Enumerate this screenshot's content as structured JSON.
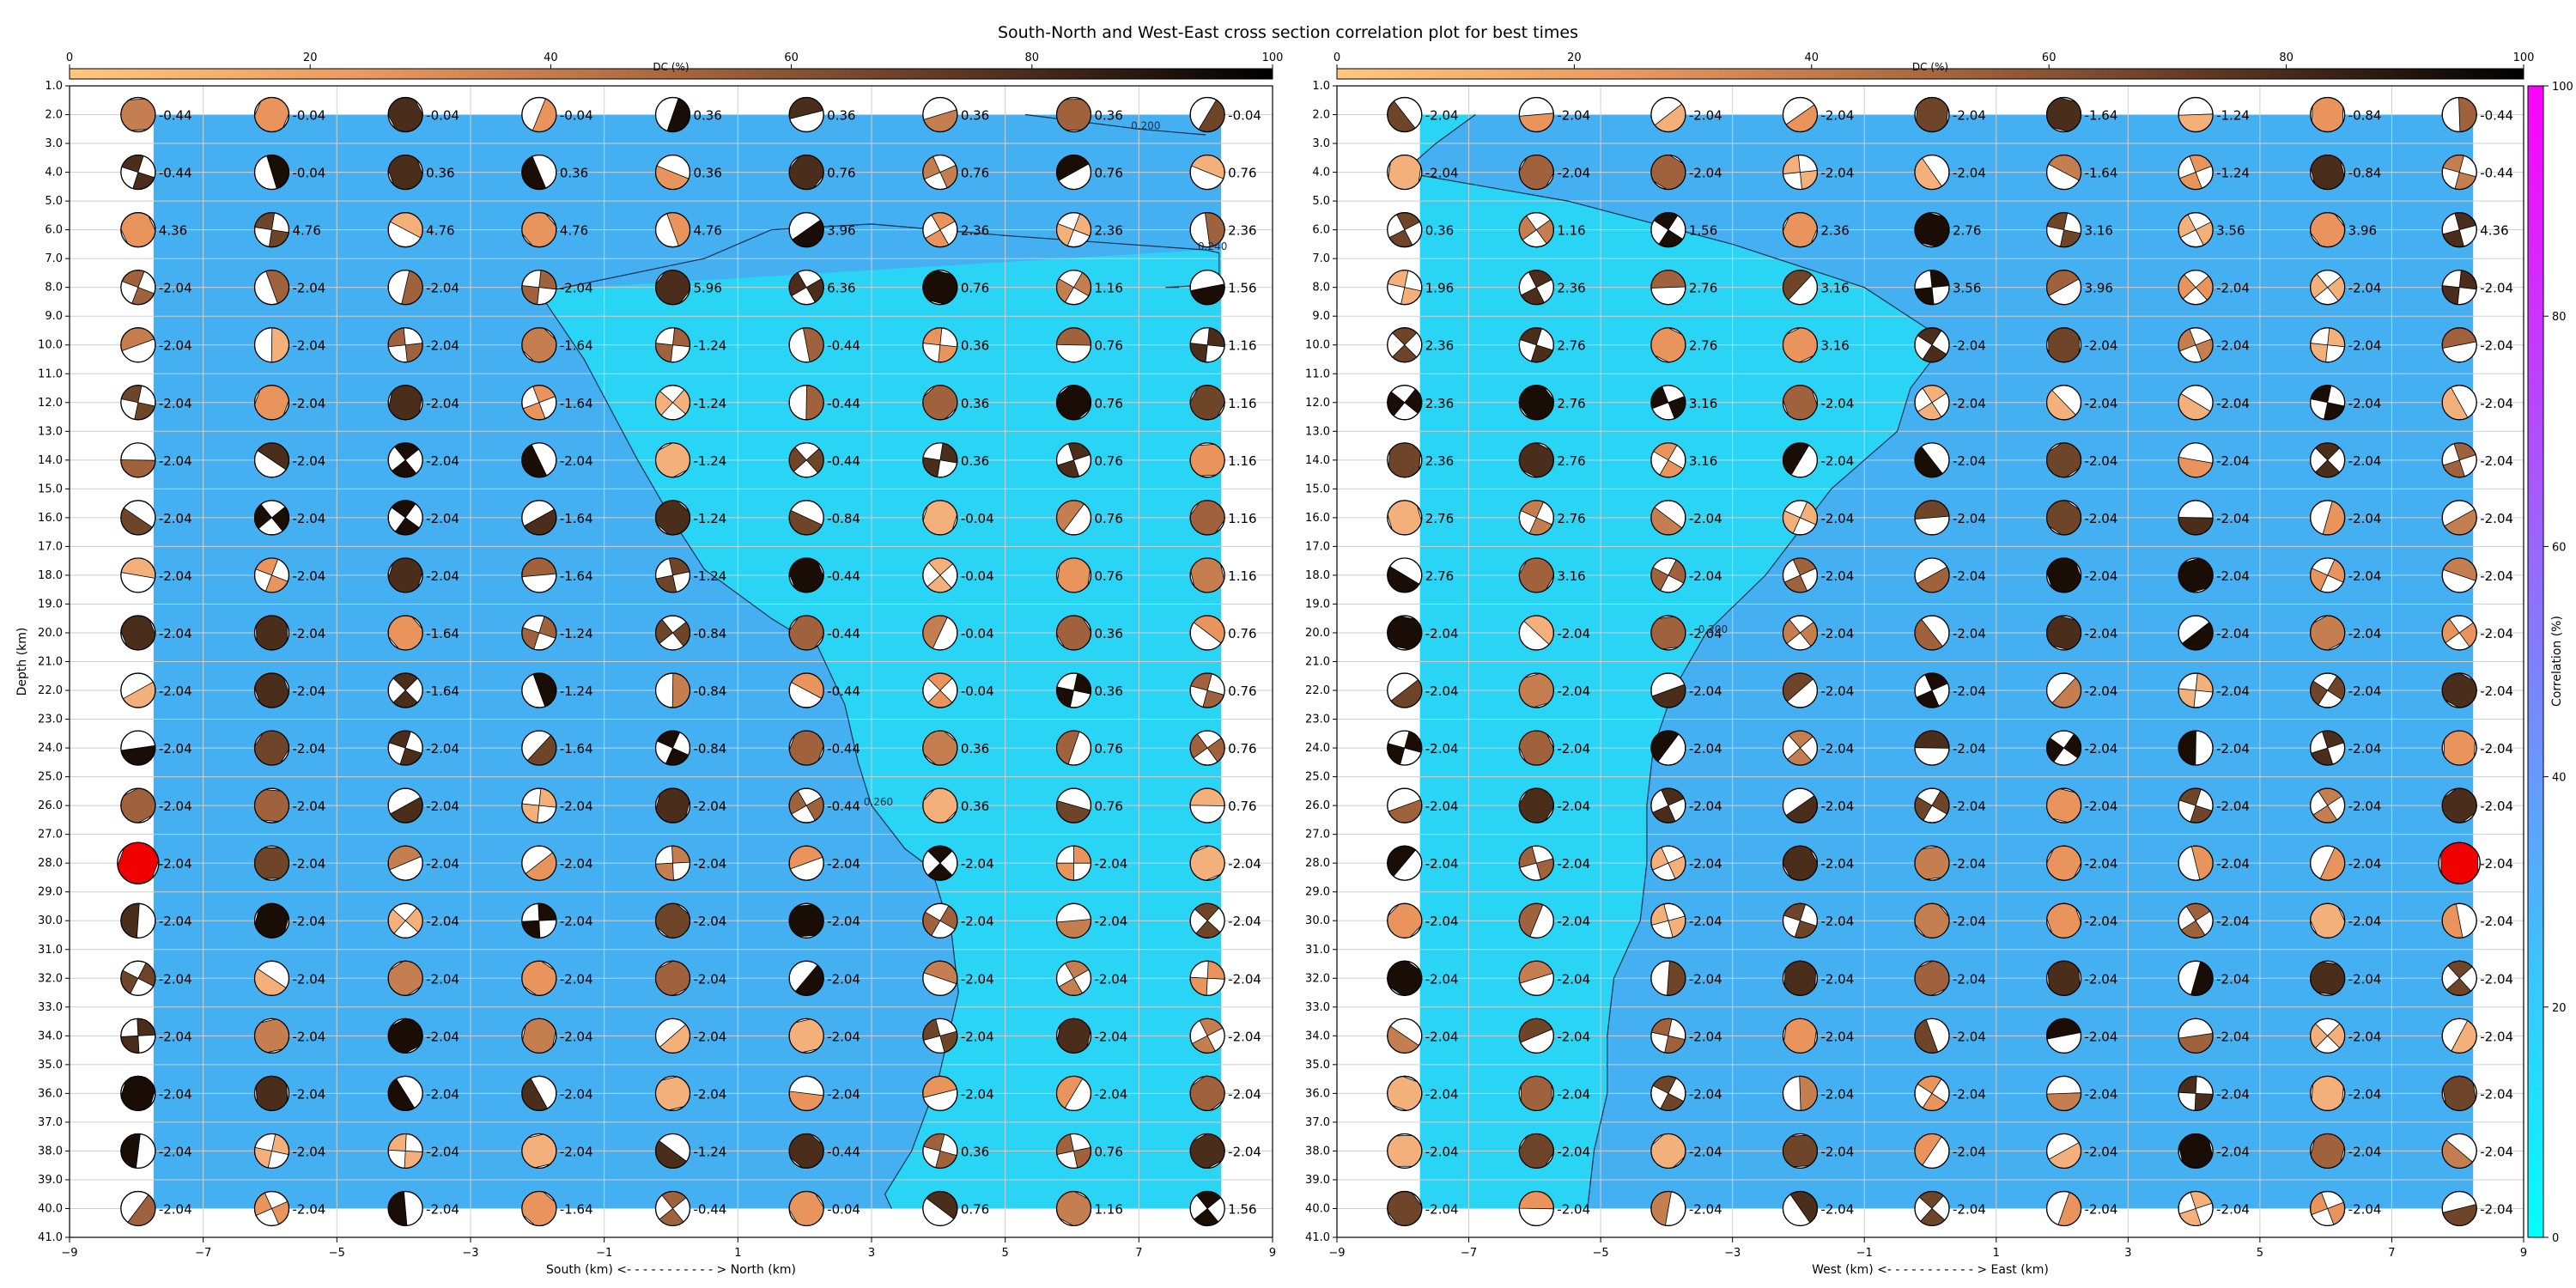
{
  "figure_title": "South-North and West-East cross section correlation plot for best times",
  "colors": {
    "background_low": "#2ad4f5",
    "background_high": "#44b0f2",
    "grid": "#cfcfcf",
    "best_solution": "#f00000",
    "correlation_min": "#00ffff",
    "correlation_max": "#ff00ff"
  },
  "dc_colorbar": {
    "label": "DC (%)",
    "ticks": [
      0,
      20,
      40,
      60,
      80,
      100
    ],
    "colormap": "copper_r"
  },
  "correlation_colorbar": {
    "label": "Correlation (%)",
    "ticks": [
      0,
      20,
      40,
      60,
      80,
      100
    ],
    "colormap": "cool"
  },
  "chart_data": [
    {
      "type": "scatter",
      "panel": "south-north",
      "xlabel": "South (km) <- - - - - - - - - - - > North (km)",
      "ylabel": "Depth (km)",
      "x_ticks": [
        -9,
        -7,
        -5,
        -3,
        -1,
        1,
        3,
        5,
        7,
        9
      ],
      "y_ticks": [
        1,
        2,
        3,
        4,
        5,
        6,
        7,
        8,
        9,
        10,
        11,
        12,
        13,
        14,
        15,
        16,
        17,
        18,
        19,
        20,
        21,
        22,
        23,
        24,
        25,
        26,
        27,
        28,
        29,
        30,
        31,
        32,
        33,
        34,
        35,
        36,
        37,
        38,
        39,
        40,
        41
      ],
      "xlim": [
        -9,
        9
      ],
      "ylim": [
        41,
        1
      ],
      "grid": true,
      "columns_x": [
        -8,
        -6,
        -4,
        -2,
        0,
        2,
        4,
        6,
        8
      ],
      "rows_depth": [
        2,
        4,
        6,
        8,
        10,
        12,
        14,
        16,
        18,
        20,
        22,
        24,
        26,
        28,
        30,
        32,
        34,
        36,
        38,
        40
      ],
      "time_labels": [
        [
          "-0.44",
          "-0.04",
          "-0.04",
          "-0.04",
          "0.36",
          "0.36",
          "0.36",
          "0.36",
          "-0.04"
        ],
        [
          "-0.44",
          "-0.04",
          "0.36",
          "0.36",
          "0.36",
          "0.76",
          "0.76",
          "0.76",
          "0.76"
        ],
        [
          "4.36",
          "4.76",
          "4.76",
          "4.76",
          "4.76",
          "3.96",
          "2.36",
          "2.36",
          "2.36"
        ],
        [
          "-2.04",
          "-2.04",
          "-2.04",
          "-2.04",
          "5.96",
          "6.36",
          "0.76",
          "1.16",
          "1.56"
        ],
        [
          "-2.04",
          "-2.04",
          "-2.04",
          "-1.64",
          "-1.24",
          "-0.44",
          "0.36",
          "0.76",
          "1.16"
        ],
        [
          "-2.04",
          "-2.04",
          "-2.04",
          "-1.64",
          "-1.24",
          "-0.44",
          "0.36",
          "0.76",
          "1.16"
        ],
        [
          "-2.04",
          "-2.04",
          "-2.04",
          "-2.04",
          "-1.24",
          "-0.44",
          "0.36",
          "0.76",
          "1.16"
        ],
        [
          "-2.04",
          "-2.04",
          "-2.04",
          "-1.64",
          "-1.24",
          "-0.84",
          "-0.04",
          "0.76",
          "1.16"
        ],
        [
          "-2.04",
          "-2.04",
          "-2.04",
          "-1.64",
          "-1.24",
          "-0.44",
          "-0.04",
          "0.76",
          "1.16"
        ],
        [
          "-2.04",
          "-2.04",
          "-1.64",
          "-1.24",
          "-0.84",
          "-0.44",
          "-0.04",
          "0.36",
          "0.76"
        ],
        [
          "-2.04",
          "-2.04",
          "-1.64",
          "-1.24",
          "-0.84",
          "-0.44",
          "-0.04",
          "0.36",
          "0.76"
        ],
        [
          "-2.04",
          "-2.04",
          "-2.04",
          "-1.64",
          "-0.84",
          "-0.44",
          "0.36",
          "0.76",
          "0.76"
        ],
        [
          "-2.04",
          "-2.04",
          "-2.04",
          "-2.04",
          "-2.04",
          "-0.44",
          "0.36",
          "0.76",
          "0.76"
        ],
        [
          "-2.04",
          "-2.04",
          "-2.04",
          "-2.04",
          "-2.04",
          "-2.04",
          "-2.04",
          "-2.04",
          "-2.04"
        ],
        [
          "-2.04",
          "-2.04",
          "-2.04",
          "-2.04",
          "-2.04",
          "-2.04",
          "-2.04",
          "-2.04",
          "-2.04"
        ],
        [
          "-2.04",
          "-2.04",
          "-2.04",
          "-2.04",
          "-2.04",
          "-2.04",
          "-2.04",
          "-2.04",
          "-2.04"
        ],
        [
          "-2.04",
          "-2.04",
          "-2.04",
          "-2.04",
          "-2.04",
          "-2.04",
          "-2.04",
          "-2.04",
          "-2.04"
        ],
        [
          "-2.04",
          "-2.04",
          "-2.04",
          "-2.04",
          "-2.04",
          "-2.04",
          "-2.04",
          "-2.04",
          "-2.04"
        ],
        [
          "-2.04",
          "-2.04",
          "-2.04",
          "-2.04",
          "-1.24",
          "-0.44",
          "0.36",
          "0.76",
          "-2.04"
        ],
        [
          "-2.04",
          "-2.04",
          "-2.04",
          "-1.64",
          "-0.44",
          "-0.04",
          "0.76",
          "1.16",
          "1.56"
        ]
      ],
      "best_solution": {
        "x": -8,
        "depth": 28
      },
      "contours": [
        {
          "label": "0.200",
          "points": [
            [
              5.3,
              2.0
            ],
            [
              7.0,
              2.5
            ],
            [
              8.0,
              2.7
            ]
          ]
        },
        {
          "label": "0.240",
          "points": [
            [
              -2,
              8.2
            ],
            [
              0.5,
              7.0
            ],
            [
              1.5,
              6.0
            ],
            [
              3,
              5.8
            ],
            [
              5,
              6.2
            ],
            [
              8,
              6.7
            ],
            [
              8.2,
              6.8
            ],
            [
              8.2,
              7.9
            ],
            [
              7.4,
              8.0
            ],
            [
              7.6,
              8.0
            ]
          ]
        },
        {
          "label": "0.260",
          "points": [
            [
              -2,
              8.1
            ],
            [
              -1.3,
              10.5
            ],
            [
              -0.5,
              14
            ],
            [
              0,
              16
            ],
            [
              0.5,
              17.8
            ],
            [
              1.5,
              19.5
            ],
            [
              2.2,
              20.5
            ],
            [
              2.6,
              22.5
            ],
            [
              2.8,
              24.5
            ],
            [
              3.0,
              26
            ],
            [
              3.5,
              27.5
            ],
            [
              3.9,
              28.2
            ],
            [
              4.2,
              30.5
            ],
            [
              4.3,
              32.5
            ],
            [
              4.0,
              35.5
            ],
            [
              3.6,
              38
            ],
            [
              3.2,
              39.5
            ],
            [
              3.3,
              40
            ]
          ]
        }
      ]
    },
    {
      "type": "scatter",
      "panel": "west-east",
      "xlabel": "West (km) <- - - - - - - - - - - > East (km)",
      "ylabel": "Depth (km)",
      "x_ticks": [
        -9,
        -7,
        -5,
        -3,
        -1,
        1,
        3,
        5,
        7,
        9
      ],
      "y_ticks": [
        1,
        2,
        3,
        4,
        5,
        6,
        7,
        8,
        9,
        10,
        11,
        12,
        13,
        14,
        15,
        16,
        17,
        18,
        19,
        20,
        21,
        22,
        23,
        24,
        25,
        26,
        27,
        28,
        29,
        30,
        31,
        32,
        33,
        34,
        35,
        36,
        37,
        38,
        39,
        40,
        41
      ],
      "xlim": [
        -9,
        9
      ],
      "ylim": [
        41,
        1
      ],
      "grid": true,
      "columns_x": [
        -8,
        -6,
        -4,
        -2,
        0,
        2,
        4,
        6,
        8
      ],
      "rows_depth": [
        2,
        4,
        6,
        8,
        10,
        12,
        14,
        16,
        18,
        20,
        22,
        24,
        26,
        28,
        30,
        32,
        34,
        36,
        38,
        40
      ],
      "time_labels": [
        [
          "-2.04",
          "-2.04",
          "-2.04",
          "-2.04",
          "-2.04",
          "-1.64",
          "-1.24",
          "-0.84",
          "-0.44"
        ],
        [
          "-2.04",
          "-2.04",
          "-2.04",
          "-2.04",
          "-2.04",
          "-1.64",
          "-1.24",
          "-0.84",
          "-0.44"
        ],
        [
          "0.36",
          "1.16",
          "1.56",
          "2.36",
          "2.76",
          "3.16",
          "3.56",
          "3.96",
          "4.36"
        ],
        [
          "1.96",
          "2.36",
          "2.76",
          "3.16",
          "3.56",
          "3.96",
          "-2.04",
          "-2.04",
          "-2.04"
        ],
        [
          "2.36",
          "2.76",
          "2.76",
          "3.16",
          "-2.04",
          "-2.04",
          "-2.04",
          "-2.04",
          "-2.04"
        ],
        [
          "2.36",
          "2.76",
          "3.16",
          "-2.04",
          "-2.04",
          "-2.04",
          "-2.04",
          "-2.04",
          "-2.04"
        ],
        [
          "2.36",
          "2.76",
          "3.16",
          "-2.04",
          "-2.04",
          "-2.04",
          "-2.04",
          "-2.04",
          "-2.04"
        ],
        [
          "2.76",
          "2.76",
          "-2.04",
          "-2.04",
          "-2.04",
          "-2.04",
          "-2.04",
          "-2.04",
          "-2.04"
        ],
        [
          "2.76",
          "3.16",
          "-2.04",
          "-2.04",
          "-2.04",
          "-2.04",
          "-2.04",
          "-2.04",
          "-2.04"
        ],
        [
          "-2.04",
          "-2.04",
          "-2.04",
          "-2.04",
          "-2.04",
          "-2.04",
          "-2.04",
          "-2.04",
          "-2.04"
        ],
        [
          "-2.04",
          "-2.04",
          "-2.04",
          "-2.04",
          "-2.04",
          "-2.04",
          "-2.04",
          "-2.04",
          "-2.04"
        ],
        [
          "-2.04",
          "-2.04",
          "-2.04",
          "-2.04",
          "-2.04",
          "-2.04",
          "-2.04",
          "-2.04",
          "-2.04"
        ],
        [
          "-2.04",
          "-2.04",
          "-2.04",
          "-2.04",
          "-2.04",
          "-2.04",
          "-2.04",
          "-2.04",
          "-2.04"
        ],
        [
          "-2.04",
          "-2.04",
          "-2.04",
          "-2.04",
          "-2.04",
          "-2.04",
          "-2.04",
          "-2.04",
          "-2.04"
        ],
        [
          "-2.04",
          "-2.04",
          "-2.04",
          "-2.04",
          "-2.04",
          "-2.04",
          "-2.04",
          "-2.04",
          "-2.04"
        ],
        [
          "-2.04",
          "-2.04",
          "-2.04",
          "-2.04",
          "-2.04",
          "-2.04",
          "-2.04",
          "-2.04",
          "-2.04"
        ],
        [
          "-2.04",
          "-2.04",
          "-2.04",
          "-2.04",
          "-2.04",
          "-2.04",
          "-2.04",
          "-2.04",
          "-2.04"
        ],
        [
          "-2.04",
          "-2.04",
          "-2.04",
          "-2.04",
          "-2.04",
          "-2.04",
          "-2.04",
          "-2.04",
          "-2.04"
        ],
        [
          "-2.04",
          "-2.04",
          "-2.04",
          "-2.04",
          "-2.04",
          "-2.04",
          "-2.04",
          "-2.04",
          "-2.04"
        ],
        [
          "-2.04",
          "-2.04",
          "-2.04",
          "-2.04",
          "-2.04",
          "-2.04",
          "-2.04",
          "-2.04",
          "-2.04"
        ]
      ],
      "best_solution": {
        "x": 8,
        "depth": 28
      },
      "contours": [
        {
          "label": "0.200",
          "points": [
            [
              -6.9,
              2.0
            ],
            [
              -7.5,
              3.0
            ],
            [
              -8.0,
              4.0
            ],
            [
              -5.5,
              5.0
            ],
            [
              -3,
              6.5
            ],
            [
              -1,
              8
            ],
            [
              0,
              9.5
            ],
            [
              0.2,
              10
            ],
            [
              -0.3,
              11.5
            ],
            [
              -0.5,
              13
            ],
            [
              -1.5,
              15
            ],
            [
              -2.5,
              18
            ],
            [
              -3.4,
              20
            ],
            [
              -3.9,
              22
            ],
            [
              -4.2,
              24
            ],
            [
              -4.3,
              26
            ],
            [
              -4.3,
              28
            ],
            [
              -4.4,
              30
            ],
            [
              -4.8,
              32
            ],
            [
              -4.9,
              34
            ],
            [
              -4.9,
              36
            ],
            [
              -5.1,
              38
            ],
            [
              -5.2,
              40
            ]
          ]
        }
      ]
    }
  ]
}
